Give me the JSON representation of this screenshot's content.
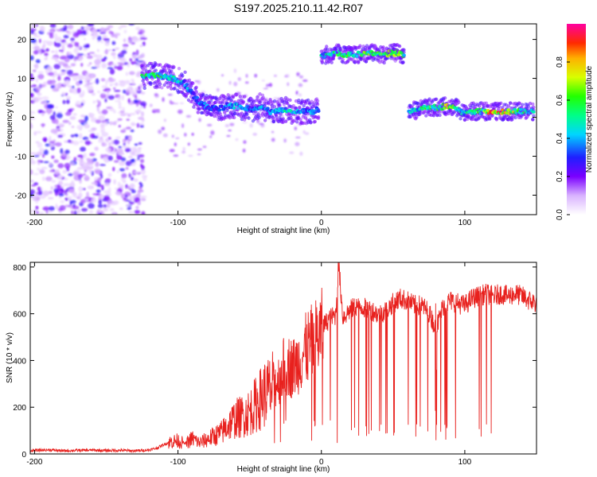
{
  "title": "S197.2025.210.11.42.R07",
  "chart_data": [
    {
      "type": "heatmap",
      "xlabel": "Height of straight line (km)",
      "ylabel": "Frequency (Hz)",
      "xlim": [
        -203,
        150
      ],
      "ylim": [
        -25,
        24
      ],
      "xticks": [
        -200,
        -100,
        0,
        100
      ],
      "yticks": [
        20,
        10,
        0,
        -10,
        -20
      ],
      "colorbar": {
        "label": "Normalized spectral amplitude",
        "ticks": [
          0.0,
          0.2,
          0.4,
          0.6,
          0.8
        ],
        "range": [
          0,
          1
        ]
      },
      "ridges": [
        {
          "x": [
            -125,
            -118,
            -110,
            -103,
            -96,
            -90,
            -84,
            -78,
            -72,
            -66,
            -60,
            -54,
            -48,
            -42,
            -36,
            -30,
            -24,
            -18,
            -12,
            -6,
            -2
          ],
          "y": [
            10.5,
            11,
            10.5,
            10,
            9,
            6,
            3.5,
            2.5,
            2,
            3,
            3,
            2.5,
            2,
            3,
            1.5,
            1.5,
            2,
            1.5,
            1.5,
            1.5,
            2
          ],
          "amplitude": [
            0.5,
            0.55,
            0.5,
            0.45,
            0.4,
            0.35,
            0.35,
            0.35,
            0.3,
            0.35,
            0.4,
            0.35,
            0.3,
            0.4,
            0.35,
            0.4,
            0.45,
            0.45,
            0.35,
            0.4,
            0.4
          ]
        },
        {
          "x": [
            0,
            6,
            12,
            18,
            24,
            30,
            36,
            42,
            48,
            54,
            58
          ],
          "y": [
            16,
            16,
            16.5,
            16,
            16,
            16.5,
            16.5,
            16,
            16.5,
            16.5,
            16
          ],
          "amplitude": [
            0.45,
            0.5,
            0.6,
            0.55,
            0.5,
            0.6,
            0.55,
            0.6,
            0.6,
            0.65,
            0.55
          ]
        },
        {
          "x": [
            61,
            68,
            75,
            82,
            88,
            94,
            100,
            106,
            112,
            118,
            124,
            130,
            136,
            142,
            148
          ],
          "y": [
            1.5,
            2,
            2.5,
            2.5,
            3,
            2.5,
            1,
            1.5,
            1.5,
            1.5,
            1.5,
            1.5,
            1.5,
            1.5,
            1.5
          ],
          "amplitude": [
            0.4,
            0.45,
            0.6,
            0.55,
            0.7,
            0.5,
            0.45,
            0.5,
            0.55,
            0.8,
            0.8,
            0.75,
            0.6,
            0.5,
            0.45
          ]
        }
      ]
    },
    {
      "type": "line",
      "xlabel": "Height of straight line (km)",
      "ylabel": "SNR (10 * v/v)",
      "xlim": [
        -203,
        150
      ],
      "ylim": [
        0,
        820
      ],
      "xticks": [
        -200,
        -100,
        0,
        100
      ],
      "yticks": [
        0,
        200,
        400,
        600,
        800
      ],
      "color": "#e8211e",
      "x": [
        -203,
        -190,
        -180,
        -170,
        -160,
        -150,
        -140,
        -130,
        -120,
        -115,
        -110,
        -105,
        -100,
        -95,
        -90,
        -85,
        -80,
        -75,
        -70,
        -65,
        -60,
        -55,
        -50,
        -45,
        -40,
        -35,
        -30,
        -25,
        -20,
        -15,
        -10,
        -5,
        0,
        5,
        10,
        12,
        15,
        20,
        25,
        30,
        35,
        40,
        45,
        50,
        55,
        60,
        65,
        70,
        75,
        80,
        85,
        90,
        95,
        100,
        105,
        110,
        115,
        120,
        125,
        130,
        135,
        140,
        145,
        150
      ],
      "y": [
        15,
        18,
        14,
        16,
        17,
        15,
        16,
        14,
        18,
        25,
        40,
        55,
        60,
        45,
        70,
        50,
        65,
        80,
        95,
        130,
        160,
        170,
        190,
        230,
        270,
        290,
        330,
        400,
        380,
        420,
        470,
        500,
        540,
        580,
        600,
        820,
        590,
        620,
        640,
        630,
        620,
        600,
        620,
        650,
        670,
        660,
        640,
        640,
        610,
        540,
        640,
        660,
        650,
        640,
        670,
        680,
        690,
        680,
        690,
        680,
        690,
        680,
        660,
        650
      ],
      "dropouts": {
        "x_range": [
          0,
          120
        ],
        "min_values": [
          40,
          60,
          70,
          80,
          90,
          100,
          110,
          120
        ]
      }
    }
  ]
}
